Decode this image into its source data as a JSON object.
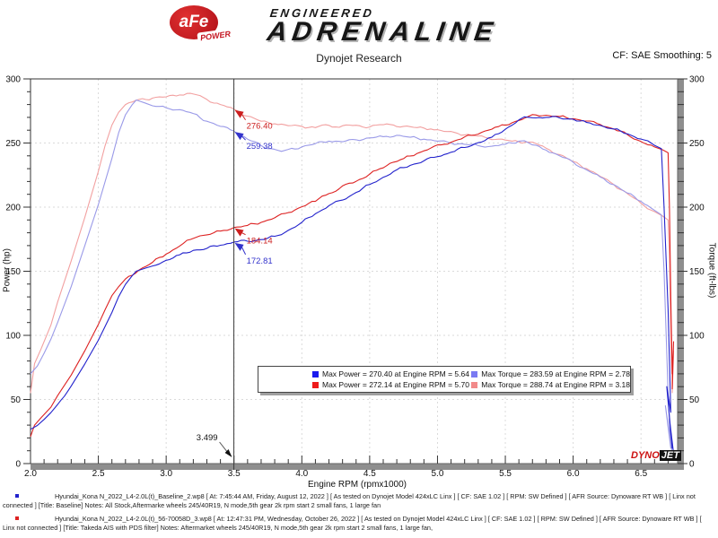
{
  "header": {
    "logo_afe": "aFe",
    "logo_power": "POWER",
    "brand_top": "ENGINEERED",
    "brand_main": "ADRENALINE",
    "subtitle": "Dynojet Research",
    "smoothing": "CF: SAE Smoothing: 5"
  },
  "chart_data": {
    "type": "line",
    "title": "Dynojet Research",
    "xlabel": "Engine RPM (rpmx1000)",
    "ylabel_left": "Power (hp)",
    "ylabel_right": "Torque (ft-lbs)",
    "xlim": [
      2.0,
      6.77
    ],
    "ylim": [
      0,
      300
    ],
    "x_major_ticks": [
      2.0,
      2.5,
      3.0,
      3.5,
      4.0,
      4.5,
      5.0,
      5.5,
      6.0,
      6.5
    ],
    "y_major_ticks": [
      0,
      50,
      100,
      150,
      200,
      250,
      300
    ],
    "x_minor_step": 0.1,
    "y_minor_step": 10,
    "grid": "dashed",
    "grid_color": "#dadada",
    "cursor": {
      "x": 3.499,
      "label": "3.499"
    },
    "cursor_annotations": [
      {
        "label": "276.40",
        "value": 276.4,
        "color": "#cc1f1f"
      },
      {
        "label": "259.38",
        "value": 259.38,
        "color": "#3333cc"
      },
      {
        "label": "184.14",
        "value": 184.14,
        "color": "#cc1f1f"
      },
      {
        "label": "172.81",
        "value": 172.81,
        "color": "#3333cc"
      }
    ],
    "series": [
      {
        "name": "torque-takeda-red",
        "color": "#f2a0a0",
        "points": [
          [
            2.0,
            55
          ],
          [
            2.03,
            78
          ],
          [
            2.08,
            90
          ],
          [
            2.15,
            108
          ],
          [
            2.2,
            126
          ],
          [
            2.3,
            158
          ],
          [
            2.4,
            192
          ],
          [
            2.5,
            228
          ],
          [
            2.55,
            248
          ],
          [
            2.6,
            264
          ],
          [
            2.65,
            274
          ],
          [
            2.7,
            280
          ],
          [
            2.8,
            284
          ],
          [
            2.9,
            285
          ],
          [
            3.0,
            286
          ],
          [
            3.1,
            287.5
          ],
          [
            3.18,
            288.74
          ],
          [
            3.25,
            287
          ],
          [
            3.3,
            284
          ],
          [
            3.4,
            280
          ],
          [
            3.5,
            276.4
          ],
          [
            3.6,
            271
          ],
          [
            3.7,
            267
          ],
          [
            3.8,
            265
          ],
          [
            3.9,
            263.5
          ],
          [
            4.0,
            263
          ],
          [
            4.1,
            262
          ],
          [
            4.15,
            264
          ],
          [
            4.25,
            262.5
          ],
          [
            4.35,
            264
          ],
          [
            4.45,
            262.5
          ],
          [
            4.55,
            264
          ],
          [
            4.65,
            264.5
          ],
          [
            4.75,
            263
          ],
          [
            4.85,
            262
          ],
          [
            4.95,
            261
          ],
          [
            5.05,
            259
          ],
          [
            5.15,
            257.5
          ],
          [
            5.25,
            256
          ],
          [
            5.35,
            254.5
          ],
          [
            5.45,
            253
          ],
          [
            5.55,
            251.5
          ],
          [
            5.65,
            250.8
          ],
          [
            5.7,
            250.7
          ],
          [
            5.8,
            246
          ],
          [
            5.9,
            241
          ],
          [
            6.0,
            235.5
          ],
          [
            6.1,
            230
          ],
          [
            6.2,
            224
          ],
          [
            6.3,
            217.5
          ],
          [
            6.4,
            210.5
          ],
          [
            6.5,
            203
          ],
          [
            6.6,
            196.5
          ],
          [
            6.66,
            193
          ],
          [
            6.7,
            190
          ],
          [
            6.71,
            160
          ],
          [
            6.72,
            100
          ],
          [
            6.73,
            58
          ],
          [
            6.74,
            88
          ],
          [
            6.73,
            55
          ]
        ]
      },
      {
        "name": "torque-baseline-blue",
        "color": "#9a9ae8",
        "points": [
          [
            2.0,
            70
          ],
          [
            2.05,
            76
          ],
          [
            2.1,
            86
          ],
          [
            2.15,
            97
          ],
          [
            2.2,
            110
          ],
          [
            2.3,
            138
          ],
          [
            2.4,
            170
          ],
          [
            2.5,
            202
          ],
          [
            2.6,
            238
          ],
          [
            2.65,
            258
          ],
          [
            2.7,
            272
          ],
          [
            2.75,
            280
          ],
          [
            2.78,
            283.59
          ],
          [
            2.85,
            281
          ],
          [
            2.9,
            279
          ],
          [
            3.0,
            277.5
          ],
          [
            3.1,
            276
          ],
          [
            3.2,
            273
          ],
          [
            3.3,
            267
          ],
          [
            3.4,
            263
          ],
          [
            3.5,
            259.38
          ],
          [
            3.6,
            253
          ],
          [
            3.7,
            248
          ],
          [
            3.8,
            245
          ],
          [
            3.85,
            243.5
          ],
          [
            3.9,
            245
          ],
          [
            4.0,
            247
          ],
          [
            4.1,
            249.5
          ],
          [
            4.2,
            251.5
          ],
          [
            4.3,
            251
          ],
          [
            4.4,
            252.5
          ],
          [
            4.5,
            254
          ],
          [
            4.6,
            255
          ],
          [
            4.7,
            256
          ],
          [
            4.8,
            254.5
          ],
          [
            4.9,
            253
          ],
          [
            5.0,
            251.5
          ],
          [
            5.1,
            250
          ],
          [
            5.2,
            249
          ],
          [
            5.3,
            248
          ],
          [
            5.4,
            247.5
          ],
          [
            5.5,
            249
          ],
          [
            5.6,
            251.5
          ],
          [
            5.64,
            251.84
          ],
          [
            5.7,
            248.5
          ],
          [
            5.8,
            244.5
          ],
          [
            5.9,
            240
          ],
          [
            6.0,
            235
          ],
          [
            6.1,
            229
          ],
          [
            6.2,
            223.5
          ],
          [
            6.3,
            217.5
          ],
          [
            6.4,
            211
          ],
          [
            6.5,
            204.5
          ],
          [
            6.6,
            197.5
          ],
          [
            6.65,
            194
          ],
          [
            6.67,
            150
          ],
          [
            6.7,
            55
          ],
          [
            6.72,
            12
          ],
          [
            6.68,
            45
          ],
          [
            6.73,
            8
          ]
        ]
      },
      {
        "name": "power-takeda-red",
        "color": "#dd2222",
        "points": [
          [
            2.0,
            21
          ],
          [
            2.03,
            30
          ],
          [
            2.08,
            36
          ],
          [
            2.15,
            44
          ],
          [
            2.2,
            53
          ],
          [
            2.3,
            69
          ],
          [
            2.4,
            88
          ],
          [
            2.5,
            108.5
          ],
          [
            2.55,
            120
          ],
          [
            2.6,
            131
          ],
          [
            2.65,
            138
          ],
          [
            2.7,
            144
          ],
          [
            2.8,
            151
          ],
          [
            2.9,
            157
          ],
          [
            3.0,
            163.4
          ],
          [
            3.1,
            169.7
          ],
          [
            3.18,
            174.8
          ],
          [
            3.25,
            177.6
          ],
          [
            3.3,
            178.4
          ],
          [
            3.4,
            181.3
          ],
          [
            3.5,
            184.14
          ],
          [
            3.6,
            185.7
          ],
          [
            3.7,
            188.1
          ],
          [
            3.8,
            191.7
          ],
          [
            3.9,
            195.7
          ],
          [
            4.0,
            200.3
          ],
          [
            4.1,
            204.5
          ],
          [
            4.15,
            208.6
          ],
          [
            4.25,
            212.4
          ],
          [
            4.35,
            218.7
          ],
          [
            4.45,
            222.4
          ],
          [
            4.55,
            228.7
          ],
          [
            4.65,
            234.2
          ],
          [
            4.75,
            237.8
          ],
          [
            4.85,
            241.9
          ],
          [
            4.95,
            246
          ],
          [
            5.05,
            249
          ],
          [
            5.15,
            252.5
          ],
          [
            5.25,
            256
          ],
          [
            5.35,
            259.4
          ],
          [
            5.45,
            262.8
          ],
          [
            5.55,
            265.8
          ],
          [
            5.65,
            269.8
          ],
          [
            5.7,
            272.14
          ],
          [
            5.8,
            271.7
          ],
          [
            5.9,
            270.7
          ],
          [
            6.0,
            269
          ],
          [
            6.1,
            267.1
          ],
          [
            6.2,
            264.4
          ],
          [
            6.3,
            260.9
          ],
          [
            6.4,
            256.5
          ],
          [
            6.5,
            251.2
          ],
          [
            6.6,
            246.9
          ],
          [
            6.66,
            244.7
          ],
          [
            6.7,
            242.4
          ],
          [
            6.71,
            200
          ],
          [
            6.72,
            130
          ],
          [
            6.73,
            70
          ],
          [
            6.74,
            95
          ],
          [
            6.73,
            58
          ]
        ]
      },
      {
        "name": "power-baseline-blue",
        "color": "#2222cc",
        "points": [
          [
            2.0,
            26.7
          ],
          [
            2.05,
            29.7
          ],
          [
            2.1,
            34.4
          ],
          [
            2.15,
            39.7
          ],
          [
            2.2,
            46.1
          ],
          [
            2.3,
            60.4
          ],
          [
            2.4,
            77.7
          ],
          [
            2.5,
            96.2
          ],
          [
            2.6,
            117.8
          ],
          [
            2.65,
            130.2
          ],
          [
            2.7,
            139.8
          ],
          [
            2.75,
            146.6
          ],
          [
            2.78,
            150.1
          ],
          [
            2.85,
            152.5
          ],
          [
            2.9,
            154.1
          ],
          [
            3.0,
            158.5
          ],
          [
            3.1,
            162.9
          ],
          [
            3.2,
            166.3
          ],
          [
            3.3,
            167.8
          ],
          [
            3.4,
            170.3
          ],
          [
            3.5,
            172.81
          ],
          [
            3.6,
            173.4
          ],
          [
            3.7,
            174.7
          ],
          [
            3.8,
            177.3
          ],
          [
            3.85,
            178.5
          ],
          [
            3.9,
            181.9
          ],
          [
            4.0,
            188.1
          ],
          [
            4.1,
            194.8
          ],
          [
            4.2,
            201.1
          ],
          [
            4.3,
            205.5
          ],
          [
            4.4,
            211.5
          ],
          [
            4.5,
            217.6
          ],
          [
            4.6,
            223.3
          ],
          [
            4.7,
            229.1
          ],
          [
            4.8,
            232.6
          ],
          [
            4.9,
            236.1
          ],
          [
            5.0,
            239.4
          ],
          [
            5.1,
            242.8
          ],
          [
            5.2,
            246.5
          ],
          [
            5.3,
            250.3
          ],
          [
            5.4,
            254.5
          ],
          [
            5.5,
            260.7
          ],
          [
            5.6,
            268.1
          ],
          [
            5.64,
            270.4
          ],
          [
            5.7,
            269.7
          ],
          [
            5.8,
            270.0
          ],
          [
            5.9,
            269.6
          ],
          [
            6.0,
            268.5
          ],
          [
            6.1,
            266.0
          ],
          [
            6.2,
            263.8
          ],
          [
            6.3,
            260.9
          ],
          [
            6.4,
            257.1
          ],
          [
            6.5,
            253.1
          ],
          [
            6.6,
            248.2
          ],
          [
            6.65,
            245.6
          ],
          [
            6.67,
            200
          ],
          [
            6.7,
            120
          ],
          [
            6.72,
            40
          ],
          [
            6.69,
            60
          ],
          [
            6.73,
            12
          ],
          [
            6.71,
            35
          ],
          [
            6.74,
            8
          ]
        ]
      }
    ]
  },
  "legend": {
    "rows": [
      {
        "col1_color": "#1a1aee",
        "col1_text": "Max Power = 270.40 at Engine RPM = 5.64",
        "col2_color": "#7a7af2",
        "col2_text": "Max Torque = 283.59 at Engine RPM = 2.78"
      },
      {
        "col1_color": "#ee1a1a",
        "col1_text": "Max Power = 272.14 at Engine RPM = 5.70",
        "col2_color": "#f28a8a",
        "col2_text": "Max Torque = 288.74 at Engine RPM = 3.18"
      }
    ]
  },
  "watermark": {
    "dyno": "DYNO",
    "jet": "JET"
  },
  "footer": {
    "runs": [
      {
        "bullet_color": "#2222cc",
        "text": "Hyundai_Kona N_2022_L4-2.0L(t)_Baseline_2.wp8 [ At: 7:45:44 AM, Friday, August 12, 2022 ] [ As tested on Dynojet Model 424xLC Linx ] [ CF: SAE 1.02 ] [ RPM: SW Defined ] [ AFR Source: Dynoware RT WB ] [ Linx not connected ] [Title: Baseline]  Notes: All Stock,Aftermarke wheels 245/40R19, N mode,5th gear 2k rpm start 2 small fans, 1 large fan"
      },
      {
        "bullet_color": "#dd2222",
        "text": "Hyundai_Kona N_2022_L4-2.0L(t)_56-70058D_3.wp8 [ At: 12:47:31 PM, Wednesday, October 26, 2022 ] [ As tested on Dynojet Model 424xLC Linx ] [ CF: SAE 1.02 ] [ RPM: SW Defined ] [ AFR Source: Dynoware RT WB ] [ Linx not connected ] [Title: Takeda AIS with PDS filter]  Notes:  Aftermarket wheels 245/40R19, N mode,5th gear 2k rpm start 2 small fans, 1 large fan,"
      }
    ]
  }
}
